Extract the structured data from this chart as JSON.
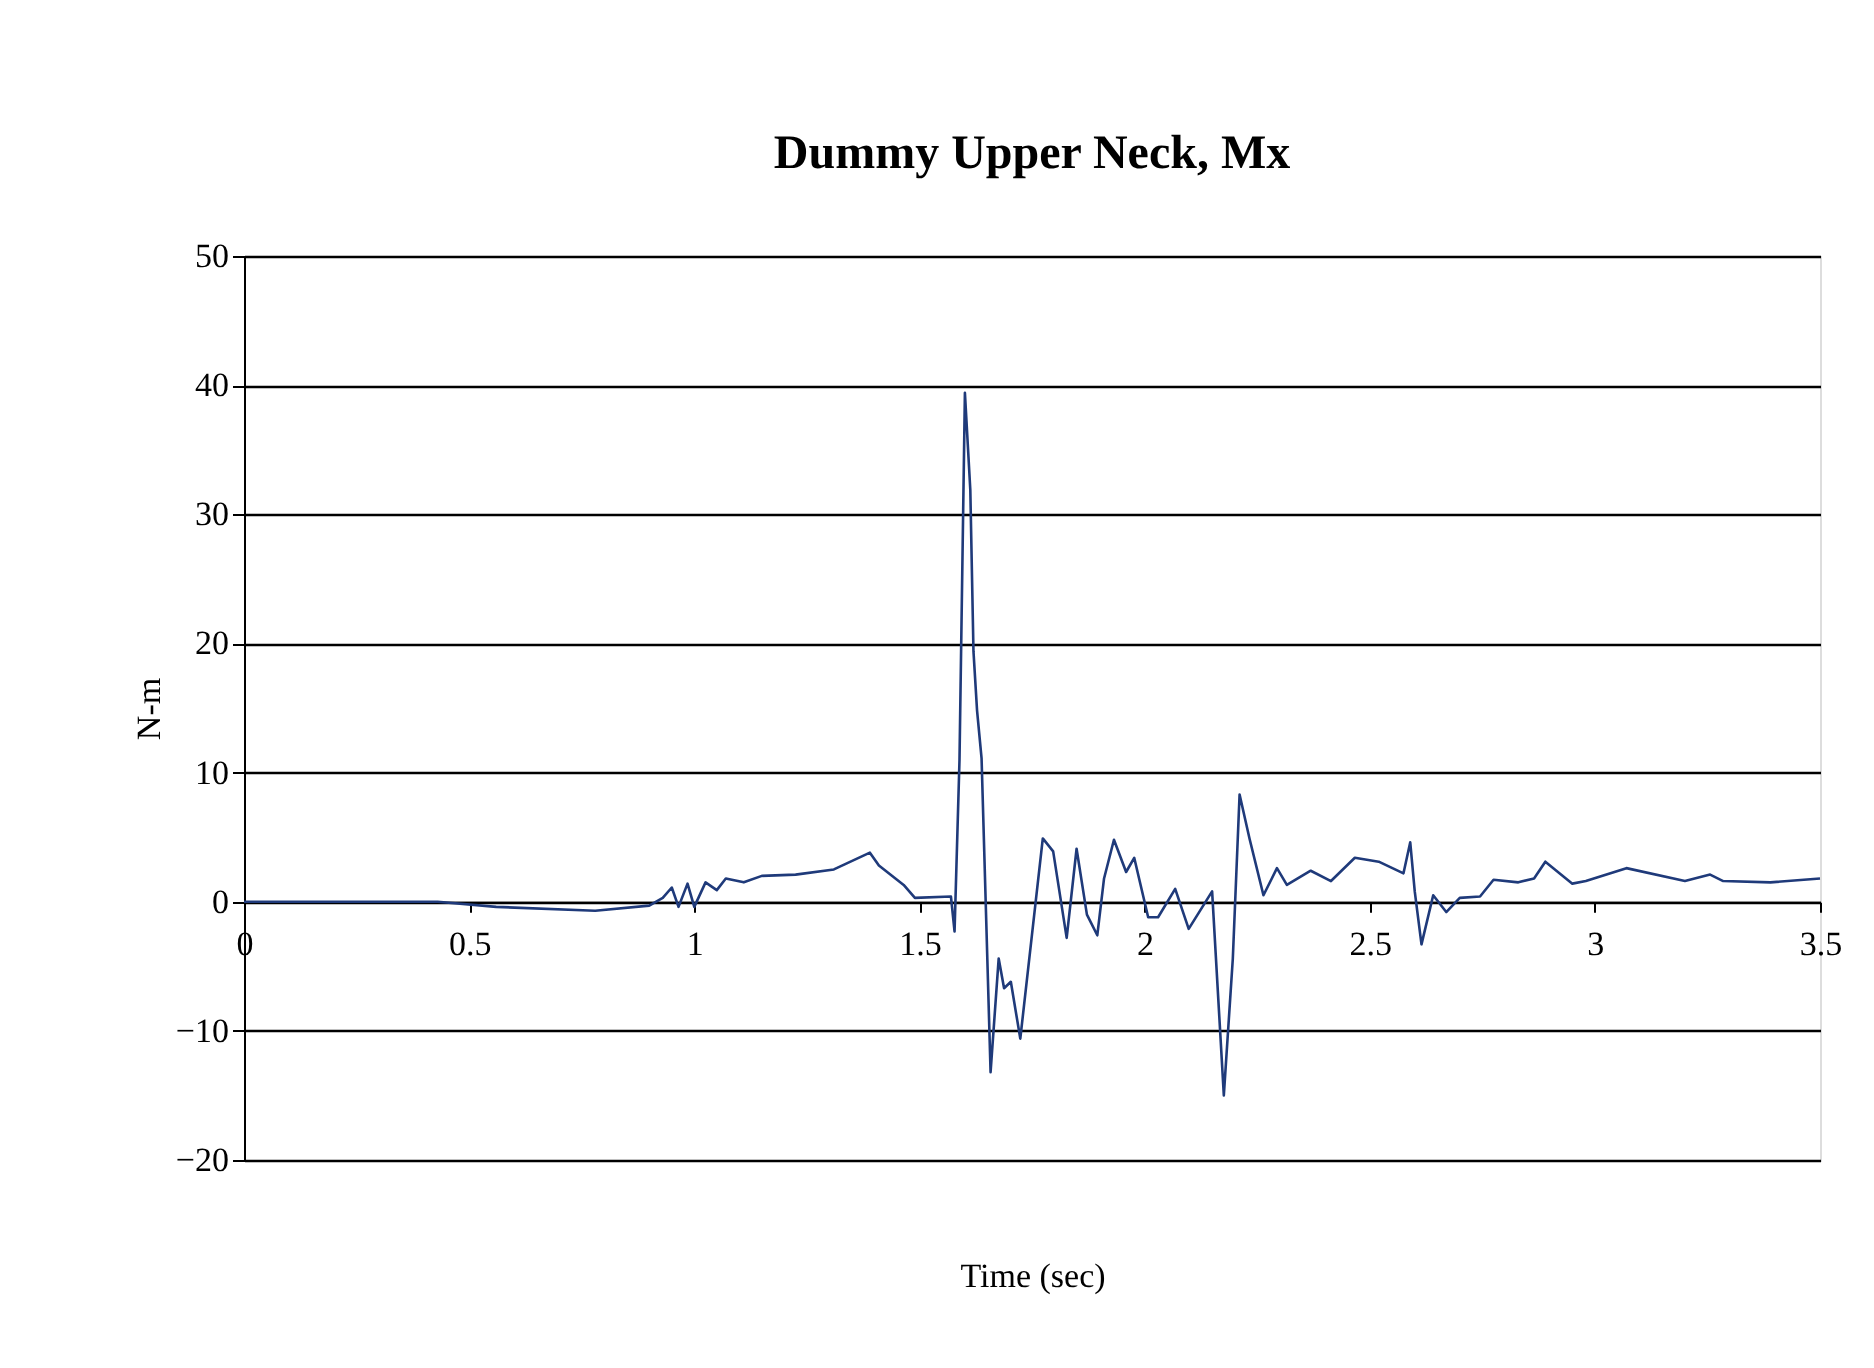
{
  "chart_data": {
    "type": "line",
    "title": "Dummy Upper Neck, Mx",
    "xlabel": "Time (sec)",
    "ylabel": "N-m",
    "xlim": [
      0,
      3.5
    ],
    "xticks": [
      {
        "value": 0,
        "label": "0"
      },
      0.5,
      {
        "value": 1,
        "label": "1"
      },
      1.5,
      {
        "value": 2,
        "label": "2"
      },
      2.5,
      {
        "value": 3,
        "label": "3"
      },
      3.5
    ],
    "ylim": [
      -20,
      50
    ],
    "yticks": [
      -20,
      -10,
      0,
      10,
      20,
      30,
      40,
      50
    ],
    "grid": "y",
    "marker": "none",
    "line_style": "solid",
    "series": [
      {
        "color": "#1f3a7a",
        "x": [
          0,
          0.43,
          0.56,
          0.78,
          0.9,
          0.93,
          0.95,
          0.965,
          0.985,
          1.0,
          1.025,
          1.05,
          1.07,
          1.11,
          1.15,
          1.225,
          1.31,
          1.39,
          1.41,
          1.465,
          1.49,
          1.57,
          1.578,
          1.589,
          1.601,
          1.613,
          1.62,
          1.628,
          1.638,
          1.658,
          1.676,
          1.688,
          1.703,
          1.724,
          1.774,
          1.797,
          1.827,
          1.849,
          1.872,
          1.895,
          1.91,
          1.932,
          1.959,
          1.977,
          2.008,
          2.03,
          2.068,
          2.098,
          2.15,
          2.176,
          2.196,
          2.211,
          2.233,
          2.264,
          2.294,
          2.316,
          2.369,
          2.414,
          2.467,
          2.52,
          2.575,
          2.59,
          2.6,
          2.615,
          2.641,
          2.67,
          2.7,
          2.745,
          2.775,
          2.83,
          2.865,
          2.89,
          2.95,
          2.98,
          3.07,
          3.2,
          3.256,
          3.285,
          3.39,
          3.5
        ],
        "values": [
          0,
          0,
          -0.4,
          -0.7,
          -0.3,
          0.3,
          1.1,
          -0.4,
          1.4,
          -0.4,
          1.5,
          0.9,
          1.8,
          1.5,
          2.0,
          2.1,
          2.5,
          3.8,
          2.8,
          1.3,
          0.3,
          0.4,
          -2.3,
          11,
          39.4,
          31.9,
          19.4,
          14.8,
          11.1,
          -13.2,
          -4.4,
          -6.7,
          -6.2,
          -10.6,
          4.9,
          3.9,
          -2.8,
          4.1,
          -1.0,
          -2.6,
          1.8,
          4.8,
          2.3,
          3.4,
          -1.2,
          -1.2,
          1.0,
          -2.1,
          0.8,
          -15.0,
          -4.4,
          8.3,
          4.9,
          0.5,
          2.6,
          1.3,
          2.4,
          1.6,
          3.4,
          3.1,
          2.2,
          4.6,
          0.8,
          -3.3,
          0.5,
          -0.8,
          0.3,
          0.4,
          1.7,
          1.5,
          1.8,
          3.1,
          1.4,
          1.6,
          2.6,
          1.6,
          2.1,
          1.6,
          1.5,
          1.8
        ]
      }
    ]
  }
}
